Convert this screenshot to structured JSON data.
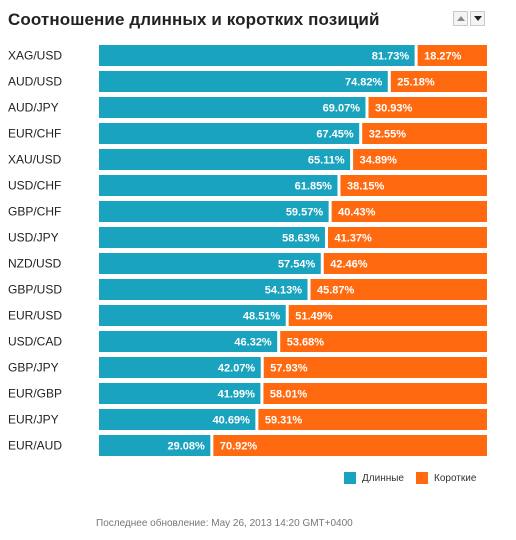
{
  "widget": {
    "title": "Соотношение длинных и коротких позиций",
    "footer": "Последнее обновление: May 26, 2013 14:20 GMT+0400"
  },
  "colors": {
    "long": "#1aa3be",
    "short": "#ff6a10"
  },
  "chart_data": {
    "type": "bar",
    "stacked": true,
    "orientation": "horizontal",
    "title": "Соотношение длинных и коротких позиций",
    "categories": [
      "XAG/USD",
      "AUD/USD",
      "AUD/JPY",
      "EUR/CHF",
      "XAU/USD",
      "USD/CHF",
      "GBP/CHF",
      "USD/JPY",
      "NZD/USD",
      "GBP/USD",
      "EUR/USD",
      "USD/CAD",
      "GBP/JPY",
      "EUR/GBP",
      "EUR/JPY",
      "EUR/AUD"
    ],
    "series": [
      {
        "name": "Длинные",
        "values": [
          81.73,
          74.82,
          69.07,
          67.45,
          65.11,
          61.85,
          59.57,
          58.63,
          57.54,
          54.13,
          48.51,
          46.32,
          42.07,
          41.99,
          40.69,
          29.08
        ],
        "labels": [
          "81.73%",
          "74.82%",
          "69.07%",
          "67.45%",
          "65.11%",
          "61.85%",
          "59.57%",
          "58.63%",
          "57.54%",
          "54.13%",
          "48.51%",
          "46.32%",
          "42.07%",
          "41.99%",
          "40.69%",
          "29.08%"
        ]
      },
      {
        "name": "Короткие",
        "values": [
          18.27,
          25.18,
          30.93,
          32.55,
          34.89,
          38.15,
          40.43,
          41.37,
          42.46,
          45.87,
          51.49,
          53.68,
          57.93,
          58.01,
          59.31,
          70.92
        ],
        "labels": [
          "18.27%",
          "25.18%",
          "30.93%",
          "32.55%",
          "34.89%",
          "38.15%",
          "40.43%",
          "41.37%",
          "42.46%",
          "45.87%",
          "51.49%",
          "53.68%",
          "57.93%",
          "58.01%",
          "59.31%",
          "70.92%"
        ]
      }
    ],
    "xlim": [
      0,
      100
    ],
    "legend": "bottom-right"
  }
}
